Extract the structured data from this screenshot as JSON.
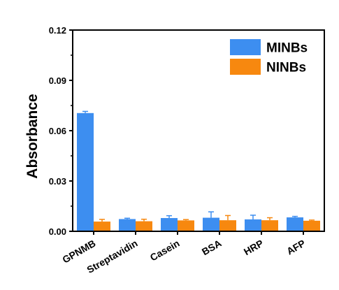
{
  "chart_data": {
    "type": "bar",
    "title": "",
    "xlabel": "",
    "ylabel": "Absorbance",
    "ylim": [
      0,
      0.12
    ],
    "yticks": [
      "0.00",
      "0.03",
      "0.06",
      "0.09",
      "0.12"
    ],
    "categories": [
      "GPNMB",
      "Streptavidin",
      "Casein",
      "BSA",
      "HRP",
      "AFP"
    ],
    "series": [
      {
        "name": "MINBs",
        "color": "#3d8ef0",
        "values": [
          0.0705,
          0.0073,
          0.0079,
          0.0081,
          0.0071,
          0.0083
        ],
        "errors": [
          0.001,
          0.0005,
          0.0014,
          0.0035,
          0.0025,
          0.0006
        ]
      },
      {
        "name": "NINBs",
        "color": "#f7880f",
        "values": [
          0.0058,
          0.006,
          0.0065,
          0.0066,
          0.0066,
          0.0063
        ],
        "errors": [
          0.0013,
          0.0012,
          0.0005,
          0.0028,
          0.0015,
          0.0004
        ]
      }
    ],
    "legend_position": "top-right",
    "grid": false
  }
}
